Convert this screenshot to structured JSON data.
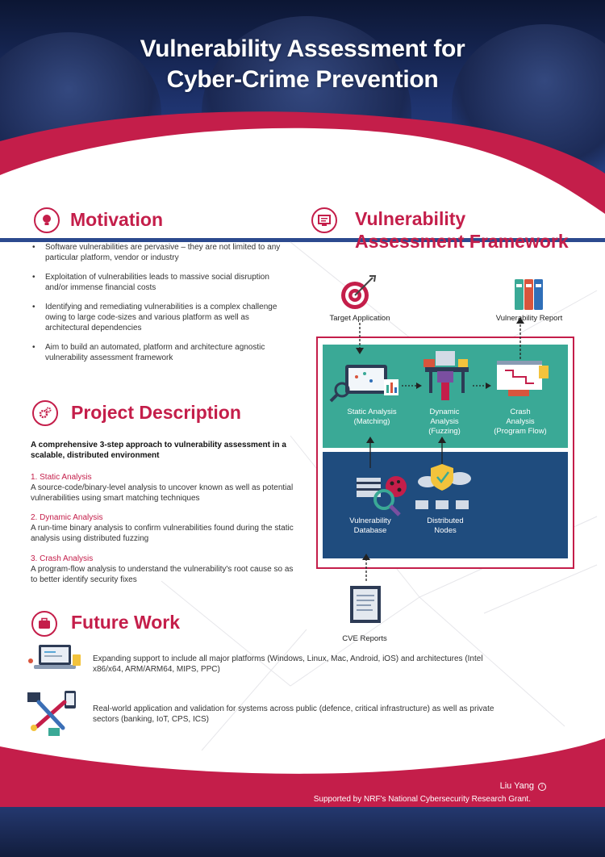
{
  "header": {
    "title_line1": "Vulnerability Assessment for",
    "title_line2": "Cyber-Crime Prevention"
  },
  "motivation": {
    "title": "Motivation",
    "icon": "lightbulb-icon",
    "bullets": [
      "Software vulnerabilities are pervasive – they are not limited to any particular platform, vendor or industry",
      "Exploitation of vulnerabilities leads to massive social disruption and/or immense financial costs",
      "Identifying and remediating vulnerabilities is a complex challenge owing to large code-sizes and various platform as well as architectural dependencies",
      "Aim to build an automated, platform and architecture agnostic vulnerability assessment framework"
    ]
  },
  "project": {
    "title": "Project Description",
    "icon": "gears-icon",
    "intro": "A comprehensive 3-step approach to vulnerability assessment in a scalable, distributed environment",
    "steps": [
      {
        "title": "1. Static Analysis",
        "desc": "A source-code/binary-level analysis to uncover known as well as potential vulnerabilities using smart matching techniques"
      },
      {
        "title": "2. Dynamic Analysis",
        "desc": "A run-time binary analysis to confirm vulnerabilities found during the static analysis using distributed fuzzing"
      },
      {
        "title": "3. Crash Analysis",
        "desc": "A program-flow analysis to understand the vulnerability's root cause so as to better identify security fixes"
      }
    ]
  },
  "future": {
    "title": "Future Work",
    "icon": "briefcase-icon",
    "items": [
      "Expanding support to include all major platforms (Windows, Linux, Mac, Android, iOS) and architectures (Intel x86/x64, ARM/ARM64, MIPS, PPC)",
      "Real-world application and validation for systems across public (defence, critical infrastructure) as well as private sectors (banking, IoT, CPS, ICS)"
    ]
  },
  "framework": {
    "title_line1": "Vulnerability",
    "title_line2": "Assessment Framework",
    "icon": "monitor-icon",
    "target_label": "Target Application",
    "report_label": "Vulnerability Report",
    "static_label": "Static Analysis\n(Matching)",
    "dynamic_label": "Dynamic\nAnalysis\n(Fuzzing)",
    "crash_label": "Crash\nAnalysis\n(Program Flow)",
    "database_label": "Vulnerability\nDatabase",
    "nodes_label": "Distributed\nNodes",
    "cve_label": "CVE Reports",
    "colors": {
      "accent": "#c41e4a",
      "green_panel": "#3aa996",
      "blue_panel": "#1f4c7e"
    }
  },
  "footer": {
    "author": "Liu Yang",
    "grant": "Supported by NRF's National Cybersecurity Research Grant."
  }
}
